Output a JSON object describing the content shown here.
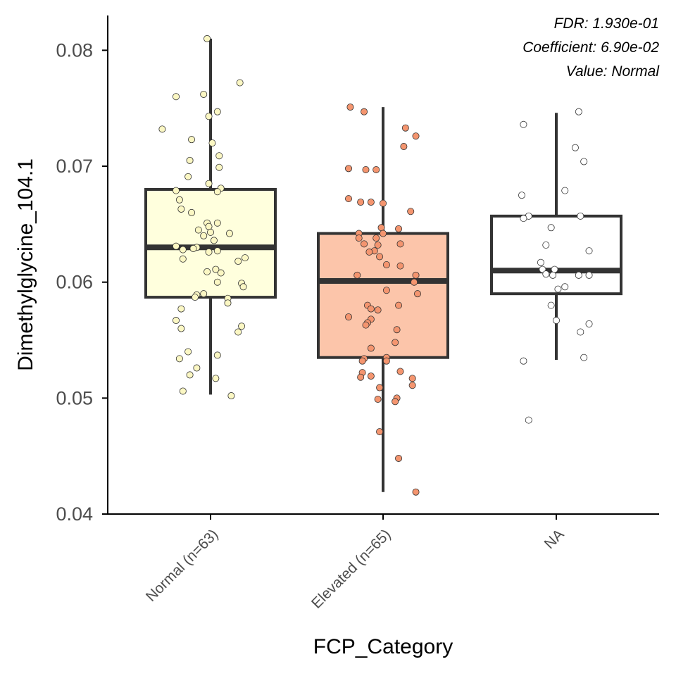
{
  "chart_data": {
    "type": "box",
    "xlabel": "FCP_Category",
    "ylabel": "Dimethylglycine_104.1",
    "ylim": [
      0.04,
      0.083
    ],
    "yticks": [
      0.04,
      0.05,
      0.06,
      0.07,
      0.08
    ],
    "ytick_labels": [
      "0.04",
      "0.05",
      "0.06",
      "0.07",
      "0.08"
    ],
    "annotations": [
      "FDR: 1.930e-01",
      "Coefficient: 6.90e-02",
      "Value: Normal"
    ],
    "grid": false,
    "legend": "none",
    "categories": [
      "Normal (n=63)",
      "Elevated (n=65)",
      "NA"
    ],
    "groups": [
      {
        "category": "Normal (n=63)",
        "fill": "#ffffdd",
        "point_fill": "#fbf7c3",
        "box": {
          "whisker_low": 0.0503,
          "q1": 0.0587,
          "median": 0.063,
          "q3": 0.068,
          "whisker_high": 0.081
        },
        "points": [
          [
            -0.02,
            0.081
          ],
          [
            0.17,
            0.0772
          ],
          [
            -0.2,
            0.076
          ],
          [
            -0.04,
            0.0762
          ],
          [
            0.04,
            0.0747
          ],
          [
            -0.01,
            0.0743
          ],
          [
            -0.28,
            0.0732
          ],
          [
            -0.11,
            0.0723
          ],
          [
            0.01,
            0.072
          ],
          [
            0.05,
            0.0709
          ],
          [
            -0.12,
            0.0705
          ],
          [
            0.05,
            0.0699
          ],
          [
            -0.13,
            0.0691
          ],
          [
            -0.01,
            0.0685
          ],
          [
            0.06,
            0.0681
          ],
          [
            0.04,
            0.0678
          ],
          [
            -0.2,
            0.0679
          ],
          [
            -0.18,
            0.0671
          ],
          [
            -0.11,
            0.066
          ],
          [
            -0.17,
            0.0663
          ],
          [
            -0.02,
            0.0651
          ],
          [
            -0.01,
            0.0648
          ],
          [
            0.04,
            0.0651
          ],
          [
            -0.07,
            0.0645
          ],
          [
            0.11,
            0.0642
          ],
          [
            0.0,
            0.0643
          ],
          [
            -0.04,
            0.064
          ],
          [
            0.02,
            0.0636
          ],
          [
            -0.08,
            0.063
          ],
          [
            -0.2,
            0.0631
          ],
          [
            -0.16,
            0.0628
          ],
          [
            -0.1,
            0.0629
          ],
          [
            0.04,
            0.0627
          ],
          [
            -0.01,
            0.0626
          ],
          [
            0.2,
            0.0621
          ],
          [
            0.16,
            0.0618
          ],
          [
            -0.16,
            0.062
          ],
          [
            0.06,
            0.0608
          ],
          [
            0.03,
            0.0611
          ],
          [
            -0.02,
            0.0609
          ],
          [
            0.04,
            0.06
          ],
          [
            0.18,
            0.0599
          ],
          [
            0.19,
            0.0596
          ],
          [
            -0.04,
            0.059
          ],
          [
            -0.08,
            0.0589
          ],
          [
            -0.09,
            0.0587
          ],
          [
            0.1,
            0.0586
          ],
          [
            0.1,
            0.0582
          ],
          [
            -0.17,
            0.0577
          ],
          [
            -0.2,
            0.0567
          ],
          [
            0.18,
            0.0562
          ],
          [
            -0.17,
            0.056
          ],
          [
            0.16,
            0.0557
          ],
          [
            -0.13,
            0.054
          ],
          [
            0.04,
            0.0537
          ],
          [
            -0.18,
            0.0534
          ],
          [
            -0.08,
            0.0526
          ],
          [
            -0.12,
            0.052
          ],
          [
            0.03,
            0.0517
          ],
          [
            -0.16,
            0.0506
          ],
          [
            0.12,
            0.0502
          ]
        ]
      },
      {
        "category": "Elevated (n=65)",
        "fill": "#fcc5aa",
        "point_fill": "#f4956f",
        "box": {
          "whisker_low": 0.0419,
          "q1": 0.0535,
          "median": 0.0601,
          "q3": 0.0642,
          "whisker_high": 0.0751
        },
        "points": [
          [
            -0.19,
            0.0751
          ],
          [
            -0.11,
            0.0747
          ],
          [
            0.13,
            0.0733
          ],
          [
            0.19,
            0.0726
          ],
          [
            0.12,
            0.0717
          ],
          [
            -0.2,
            0.0698
          ],
          [
            -0.1,
            0.0697
          ],
          [
            -0.04,
            0.0697
          ],
          [
            -0.2,
            0.0672
          ],
          [
            -0.13,
            0.0669
          ],
          [
            -0.07,
            0.0669
          ],
          [
            0.0,
            0.0668
          ],
          [
            0.16,
            0.0661
          ],
          [
            -0.01,
            0.0647
          ],
          [
            0.09,
            0.0646
          ],
          [
            -0.14,
            0.0642
          ],
          [
            0.0,
            0.0642
          ],
          [
            -0.04,
            0.0638
          ],
          [
            -0.14,
            0.0638
          ],
          [
            -0.11,
            0.0633
          ],
          [
            0.1,
            0.0633
          ],
          [
            -0.03,
            0.0632
          ],
          [
            -0.05,
            0.0627
          ],
          [
            -0.08,
            0.0626
          ],
          [
            -0.02,
            0.0622
          ],
          [
            0.02,
            0.0615
          ],
          [
            0.1,
            0.0614
          ],
          [
            -0.15,
            0.0606
          ],
          [
            0.19,
            0.0606
          ],
          [
            0.18,
            0.06
          ],
          [
            0.02,
            0.0593
          ],
          [
            0.2,
            0.059
          ],
          [
            0.09,
            0.058
          ],
          [
            -0.09,
            0.058
          ],
          [
            -0.07,
            0.0577
          ],
          [
            -0.03,
            0.0576
          ],
          [
            -0.2,
            0.057
          ],
          [
            -0.07,
            0.0568
          ],
          [
            -0.09,
            0.0565
          ],
          [
            -0.1,
            0.0563
          ],
          [
            0.08,
            0.0559
          ],
          [
            0.07,
            0.0548
          ],
          [
            -0.07,
            0.0543
          ],
          [
            0.02,
            0.0535
          ],
          [
            -0.11,
            0.0534
          ],
          [
            0.02,
            0.0532
          ],
          [
            -0.12,
            0.0532
          ],
          [
            0.1,
            0.0523
          ],
          [
            -0.12,
            0.0522
          ],
          [
            -0.07,
            0.0519
          ],
          [
            0.17,
            0.0517
          ],
          [
            -0.13,
            0.0518
          ],
          [
            0.17,
            0.0511
          ],
          [
            -0.02,
            0.0509
          ],
          [
            0.08,
            0.05
          ],
          [
            -0.03,
            0.0499
          ],
          [
            0.07,
            0.0497
          ],
          [
            -0.02,
            0.0471
          ],
          [
            0.09,
            0.0448
          ],
          [
            0.19,
            0.0419
          ]
        ]
      },
      {
        "category": "NA",
        "fill": "#ffffff",
        "point_fill": "#ffffff",
        "box": {
          "whisker_low": 0.0533,
          "q1": 0.059,
          "median": 0.061,
          "q3": 0.0657,
          "whisker_high": 0.0746
        },
        "points": [
          [
            0.13,
            0.0747
          ],
          [
            -0.19,
            0.0736
          ],
          [
            0.11,
            0.0716
          ],
          [
            0.16,
            0.0704
          ],
          [
            0.05,
            0.0679
          ],
          [
            -0.2,
            0.0675
          ],
          [
            -0.16,
            0.0657
          ],
          [
            -0.19,
            0.0655
          ],
          [
            0.14,
            0.0657
          ],
          [
            -0.03,
            0.0647
          ],
          [
            -0.06,
            0.0632
          ],
          [
            0.19,
            0.0627
          ],
          [
            -0.09,
            0.0617
          ],
          [
            -0.08,
            0.0611
          ],
          [
            -0.01,
            0.0611
          ],
          [
            -0.06,
            0.0607
          ],
          [
            -0.02,
            0.0606
          ],
          [
            0.13,
            0.0606
          ],
          [
            0.19,
            0.0606
          ],
          [
            0.05,
            0.0596
          ],
          [
            0.01,
            0.0594
          ],
          [
            -0.03,
            0.058
          ],
          [
            0.0,
            0.0567
          ],
          [
            0.14,
            0.0557
          ],
          [
            0.19,
            0.0564
          ],
          [
            0.16,
            0.0535
          ],
          [
            -0.19,
            0.0532
          ],
          [
            -0.16,
            0.0481
          ]
        ]
      }
    ]
  }
}
